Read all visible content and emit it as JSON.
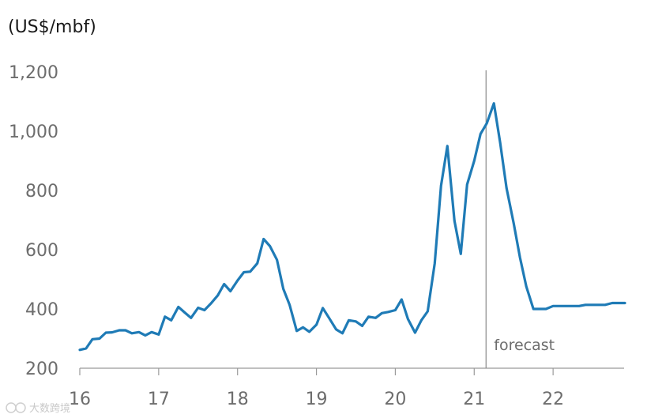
{
  "chart_data": {
    "type": "line",
    "ylabel": "(US$/mbf)",
    "ylim": [
      200,
      1200
    ],
    "yticks": [
      200,
      400,
      600,
      800,
      1000,
      1200
    ],
    "ytick_labels": [
      "200",
      "400",
      "600",
      "800",
      "1,000",
      "1,200"
    ],
    "xlim": [
      2016,
      2022.9
    ],
    "xticks": [
      2016,
      2017,
      2018,
      2019,
      2020,
      2021,
      2022
    ],
    "xtick_labels": [
      "16",
      "17",
      "18",
      "19",
      "20",
      "21",
      "22"
    ],
    "grid": false,
    "annotation": {
      "text": "forecast",
      "x": 2021.15
    },
    "series": [
      {
        "color": "#1f7bb6",
        "points": [
          [
            2016.0,
            262
          ],
          [
            2016.08,
            267
          ],
          [
            2016.16,
            298
          ],
          [
            2016.25,
            300
          ],
          [
            2016.33,
            320
          ],
          [
            2016.41,
            321
          ],
          [
            2016.5,
            328
          ],
          [
            2016.58,
            328
          ],
          [
            2016.66,
            318
          ],
          [
            2016.75,
            322
          ],
          [
            2016.83,
            311
          ],
          [
            2016.91,
            322
          ],
          [
            2017.0,
            314
          ],
          [
            2017.08,
            374
          ],
          [
            2017.16,
            362
          ],
          [
            2017.25,
            407
          ],
          [
            2017.33,
            388
          ],
          [
            2017.41,
            370
          ],
          [
            2017.5,
            404
          ],
          [
            2017.58,
            396
          ],
          [
            2017.66,
            418
          ],
          [
            2017.75,
            446
          ],
          [
            2017.83,
            484
          ],
          [
            2017.91,
            460
          ],
          [
            2018.0,
            496
          ],
          [
            2018.08,
            524
          ],
          [
            2018.16,
            526
          ],
          [
            2018.25,
            554
          ],
          [
            2018.33,
            636
          ],
          [
            2018.41,
            612
          ],
          [
            2018.5,
            566
          ],
          [
            2018.58,
            468
          ],
          [
            2018.66,
            414
          ],
          [
            2018.75,
            326
          ],
          [
            2018.83,
            338
          ],
          [
            2018.91,
            323
          ],
          [
            2019.0,
            347
          ],
          [
            2019.08,
            403
          ],
          [
            2019.16,
            370
          ],
          [
            2019.25,
            331
          ],
          [
            2019.33,
            318
          ],
          [
            2019.41,
            362
          ],
          [
            2019.5,
            358
          ],
          [
            2019.58,
            343
          ],
          [
            2019.66,
            374
          ],
          [
            2019.75,
            370
          ],
          [
            2019.83,
            386
          ],
          [
            2019.91,
            390
          ],
          [
            2020.0,
            396
          ],
          [
            2020.08,
            432
          ],
          [
            2020.16,
            366
          ],
          [
            2020.25,
            320
          ],
          [
            2020.33,
            362
          ],
          [
            2020.41,
            392
          ],
          [
            2020.5,
            554
          ],
          [
            2020.58,
            816
          ],
          [
            2020.66,
            950
          ],
          [
            2020.75,
            697
          ],
          [
            2020.83,
            586
          ],
          [
            2020.91,
            820
          ],
          [
            2021.0,
            900
          ],
          [
            2021.08,
            991
          ],
          [
            2021.16,
            1027
          ],
          [
            2021.25,
            1094
          ],
          [
            2021.33,
            960
          ],
          [
            2021.41,
            808
          ],
          [
            2021.5,
            690
          ],
          [
            2021.58,
            574
          ],
          [
            2021.66,
            476
          ],
          [
            2021.75,
            400
          ],
          [
            2021.83,
            400
          ],
          [
            2021.91,
            400
          ],
          [
            2022.0,
            410
          ],
          [
            2022.16,
            410
          ],
          [
            2022.33,
            410
          ],
          [
            2022.41,
            414
          ],
          [
            2022.58,
            414
          ],
          [
            2022.66,
            414
          ],
          [
            2022.75,
            420
          ],
          [
            2022.91,
            420
          ]
        ]
      }
    ]
  },
  "watermark": {
    "text": "大数跨境"
  }
}
